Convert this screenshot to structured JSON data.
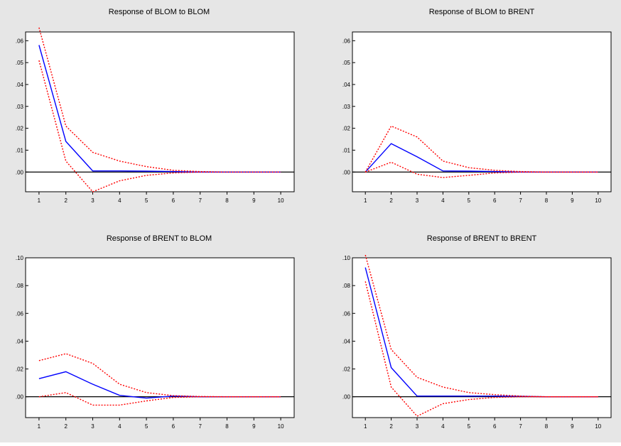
{
  "colors": {
    "background": "#e6e6e6",
    "plot_background": "#ffffff",
    "response_line": "#0000ff",
    "band_line": "#ff0000",
    "zero_line": "#000000"
  },
  "chart_data": [
    {
      "type": "line",
      "title": "Response of BLOM to BLOM",
      "x": [
        1,
        2,
        3,
        4,
        5,
        6,
        7,
        8,
        9,
        10
      ],
      "xticks": [
        "1",
        "2",
        "3",
        "4",
        "5",
        "6",
        "7",
        "8",
        "9",
        "10"
      ],
      "xlim": [
        0.5,
        10.5
      ],
      "ylim": [
        -0.009,
        0.064
      ],
      "yticks": [
        0,
        0.01,
        0.02,
        0.03,
        0.04,
        0.05,
        0.06
      ],
      "ytick_labels": [
        ".00",
        ".01",
        ".02",
        ".03",
        ".04",
        ".05",
        ".06"
      ],
      "grid": false,
      "series": [
        {
          "role": "response",
          "values": [
            0.058,
            0.014,
            0.0005,
            0.0005,
            0.0004,
            0.0002,
            0,
            0,
            0,
            0
          ]
        },
        {
          "role": "upper band",
          "values": [
            0.066,
            0.021,
            0.009,
            0.005,
            0.0025,
            0.0008,
            0.0002,
            0,
            0,
            0
          ]
        },
        {
          "role": "lower band",
          "values": [
            0.051,
            0.005,
            -0.009,
            -0.004,
            -0.0015,
            -0.0004,
            0,
            0,
            0,
            0
          ]
        }
      ]
    },
    {
      "type": "line",
      "title": "Response of BLOM to BRENT",
      "x": [
        1,
        2,
        3,
        4,
        5,
        6,
        7,
        8,
        9,
        10
      ],
      "xticks": [
        "1",
        "2",
        "3",
        "4",
        "5",
        "6",
        "7",
        "8",
        "9",
        "10"
      ],
      "xlim": [
        0.5,
        10.5
      ],
      "ylim": [
        -0.009,
        0.064
      ],
      "yticks": [
        0,
        0.01,
        0.02,
        0.03,
        0.04,
        0.05,
        0.06
      ],
      "ytick_labels": [
        ".00",
        ".01",
        ".02",
        ".03",
        ".04",
        ".05",
        ".06"
      ],
      "grid": false,
      "series": [
        {
          "role": "response",
          "values": [
            0,
            0.013,
            0.007,
            0.0005,
            0.0004,
            0.0002,
            0,
            0,
            0,
            0
          ]
        },
        {
          "role": "upper band",
          "values": [
            0,
            0.021,
            0.016,
            0.005,
            0.002,
            0.0008,
            0.0002,
            0,
            0,
            0
          ]
        },
        {
          "role": "lower band",
          "values": [
            0,
            0.0045,
            -0.001,
            -0.0025,
            -0.0015,
            -0.0004,
            0,
            0,
            0,
            0
          ]
        }
      ]
    },
    {
      "type": "line",
      "title": "Response of BRENT to BLOM",
      "x": [
        1,
        2,
        3,
        4,
        5,
        6,
        7,
        8,
        9,
        10
      ],
      "xticks": [
        "1",
        "2",
        "3",
        "4",
        "5",
        "6",
        "7",
        "8",
        "9",
        "10"
      ],
      "xlim": [
        0.5,
        10.5
      ],
      "ylim": [
        -0.015,
        0.1
      ],
      "yticks": [
        0,
        0.02,
        0.04,
        0.06,
        0.08,
        0.1
      ],
      "ytick_labels": [
        ".00",
        ".02",
        ".04",
        ".06",
        ".08",
        ".10"
      ],
      "grid": false,
      "series": [
        {
          "role": "response",
          "values": [
            0.013,
            0.018,
            0.009,
            0.001,
            -0.001,
            0.0005,
            0,
            0,
            0,
            0
          ]
        },
        {
          "role": "upper band",
          "values": [
            0.026,
            0.031,
            0.024,
            0.009,
            0.003,
            0.0008,
            0.0002,
            0,
            0,
            0
          ]
        },
        {
          "role": "lower band",
          "values": [
            0,
            0.003,
            -0.006,
            -0.006,
            -0.003,
            -0.0005,
            0,
            0,
            0,
            0
          ]
        }
      ]
    },
    {
      "type": "line",
      "title": "Response of BRENT to BRENT",
      "x": [
        1,
        2,
        3,
        4,
        5,
        6,
        7,
        8,
        9,
        10
      ],
      "xticks": [
        "1",
        "2",
        "3",
        "4",
        "5",
        "6",
        "7",
        "8",
        "9",
        "10"
      ],
      "xlim": [
        0.5,
        10.5
      ],
      "ylim": [
        -0.015,
        0.1
      ],
      "yticks": [
        0,
        0.02,
        0.04,
        0.06,
        0.08,
        0.1
      ],
      "ytick_labels": [
        ".00",
        ".02",
        ".04",
        ".06",
        ".08",
        ".10"
      ],
      "grid": false,
      "series": [
        {
          "role": "response",
          "values": [
            0.093,
            0.021,
            0.0005,
            0.0005,
            0.0005,
            0.0005,
            0.0003,
            0,
            0,
            0
          ]
        },
        {
          "role": "upper band",
          "values": [
            0.102,
            0.034,
            0.014,
            0.007,
            0.003,
            0.0015,
            0.0005,
            0,
            0,
            0
          ]
        },
        {
          "role": "lower band",
          "values": [
            0.083,
            0.007,
            -0.014,
            -0.005,
            -0.002,
            -0.0005,
            0,
            0,
            0,
            0
          ]
        }
      ]
    }
  ]
}
